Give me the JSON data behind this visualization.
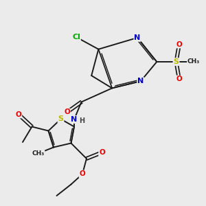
{
  "bg_color": "#ebebeb",
  "bond_color": "#1a1a1a",
  "bond_width": 1.4,
  "atom_colors": {
    "N": "#0000cc",
    "O": "#ee0000",
    "S": "#bbbb00",
    "Cl": "#00aa00",
    "C": "#1a1a1a",
    "H": "#444444"
  },
  "font_size": 7.5,
  "fig_size": [
    3.0,
    3.0
  ],
  "dpi": 100
}
